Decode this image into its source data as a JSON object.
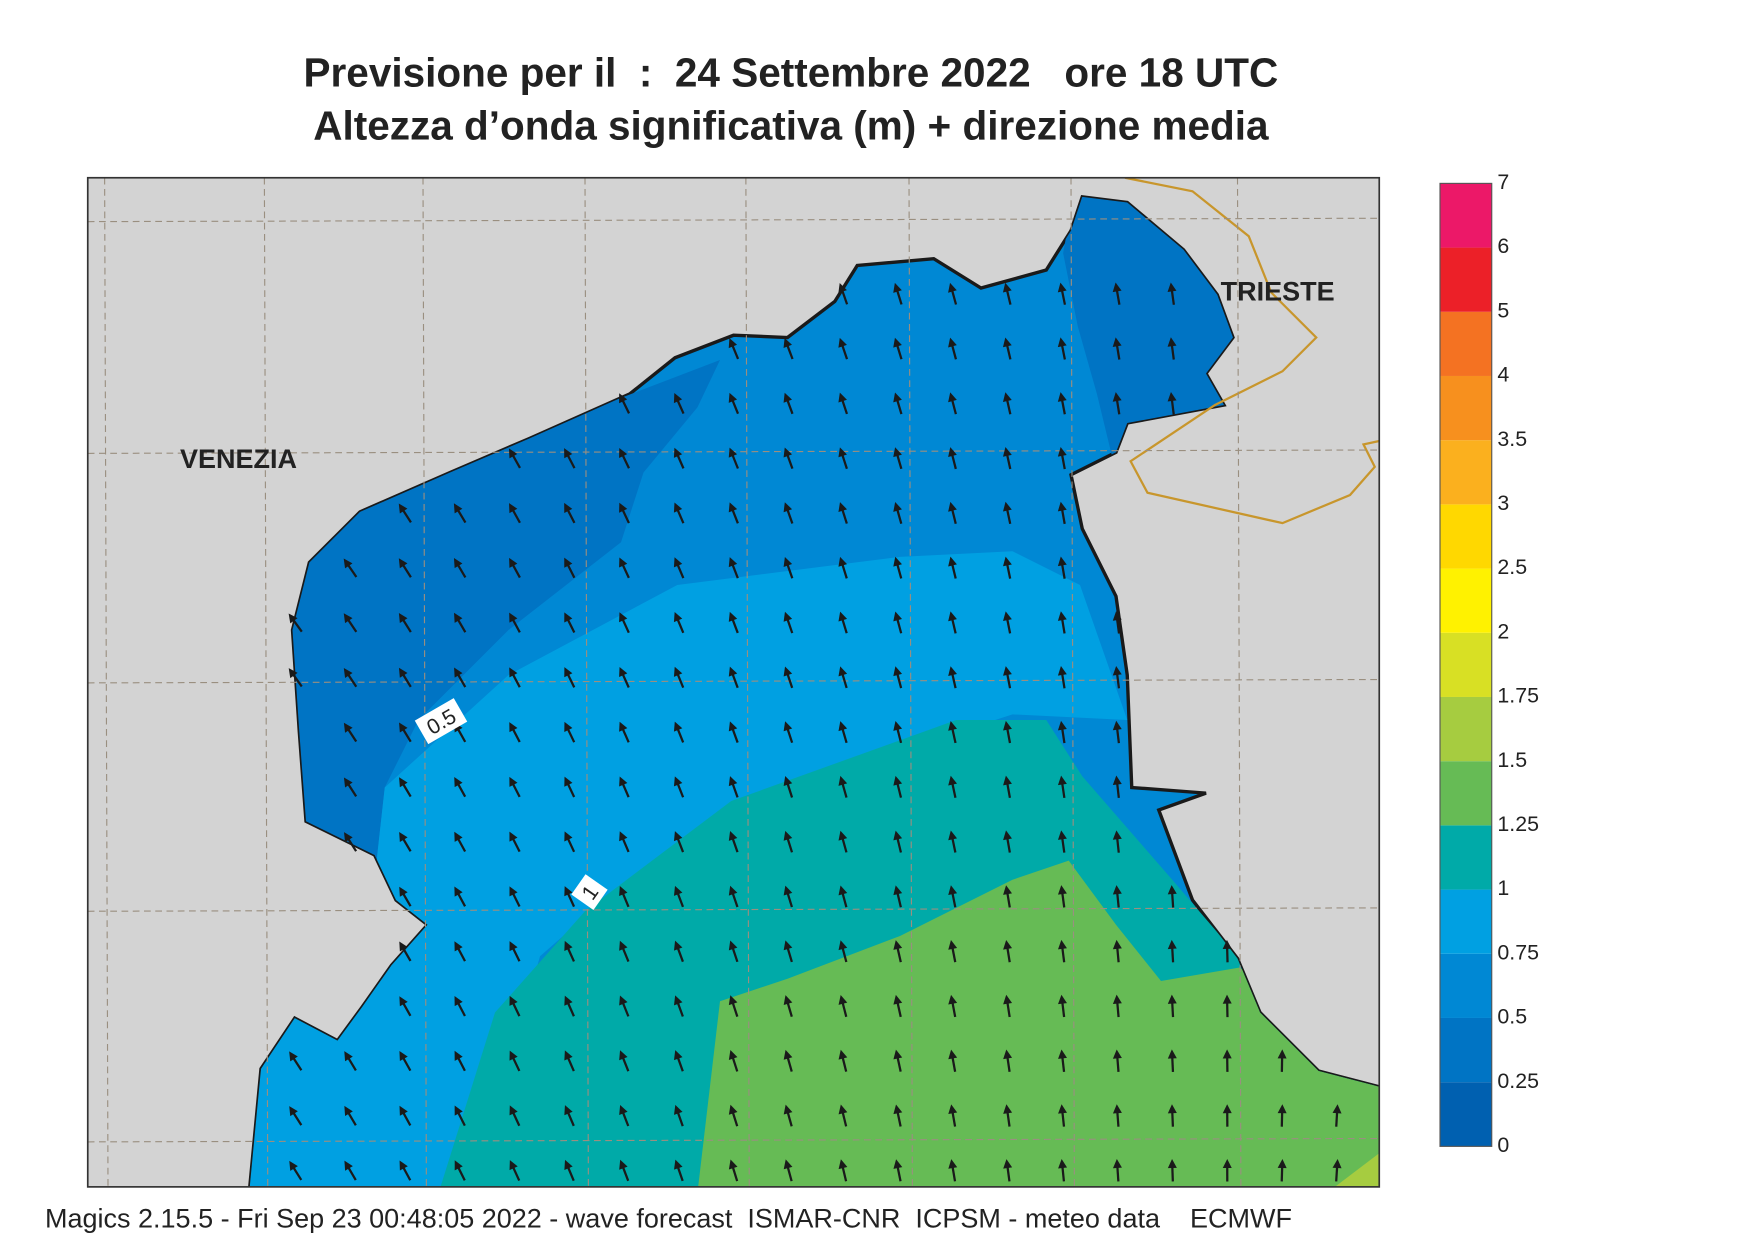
{
  "title": [
    "Previsione per il  :  24 Settembre 2022   ore 18 UTC",
    "Altezza d’onda significativa (m) + direzione media"
  ],
  "map": {
    "places": [
      "VENEZIA",
      "TRIESTE"
    ],
    "contour_labels": [
      "0.5",
      "1"
    ]
  },
  "legend": {
    "ticks": [
      0,
      0.25,
      0.5,
      0.75,
      1,
      1.25,
      1.5,
      1.75,
      2,
      2.5,
      3,
      3.5,
      4,
      5,
      6,
      7
    ],
    "colors": [
      "#0060b0",
      "#0074c4",
      "#0088d4",
      "#00a0e2",
      "#00aaa8",
      "#66bb55",
      "#a6cc40",
      "#d8e024",
      "#fff200",
      "#ffd800",
      "#fbb01e",
      "#f7901e",
      "#f47222",
      "#ec2028",
      "#ec1868"
    ]
  },
  "footer": "Magics 2.15.5 - Fri Sep 23 00:48:05 2022 - wave forecast  ISMAR-CNR  ICPSM - meteo data    ECMWF"
}
